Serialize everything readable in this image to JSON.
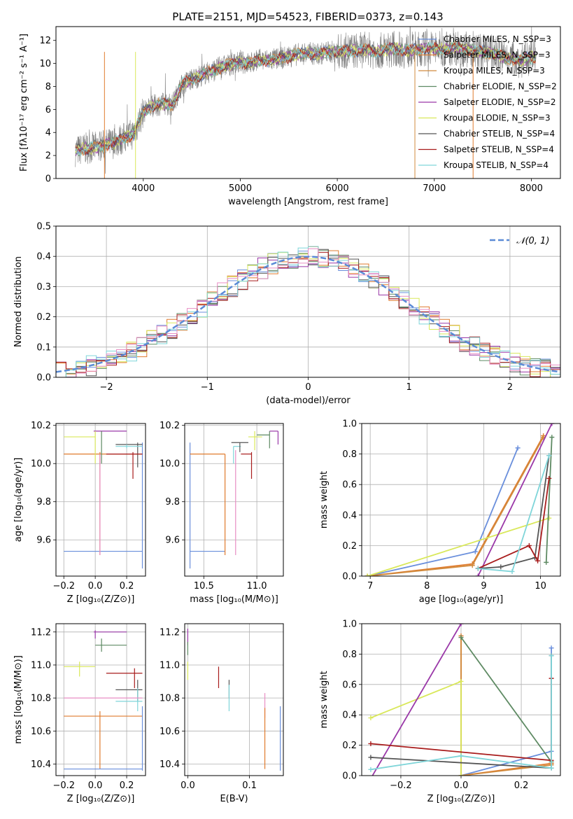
{
  "title": "PLATE=2151, MJD=54523, FIBERID=0373, z=0.143",
  "colors": {
    "chabrier_miles": "#6a8fdc",
    "salpeter_miles": "#e07b2e",
    "kroupa_miles": "#d18b3e",
    "chabrier_elodie": "#5e8a63",
    "salpeter_elodie": "#9a38a8",
    "kroupa_elodie": "#d9e85a",
    "chabrier_stelib": "#555555",
    "salpeter_stelib": "#a81c1c",
    "kroupa_stelib": "#7fd5d9",
    "pink": "#e88ec4"
  },
  "chart_data": [
    {
      "id": "spectrum",
      "type": "line",
      "xlabel": "wavelength [Angstrom, rest frame]",
      "ylabel": "Flux [fλ10⁻¹⁷ erg cm⁻² s⁻¹ A⁻¹]",
      "xlim": [
        3100,
        8300
      ],
      "ylim": [
        0,
        13.2
      ],
      "xticks": [
        "4000",
        "5000",
        "6000",
        "7000",
        "8000"
      ],
      "yticks": [
        "0",
        "2",
        "4",
        "6",
        "8",
        "10",
        "12"
      ],
      "legend_position": "top-right",
      "legend": [
        "Chabrier MILES, N_SSP=3",
        "Salpeter MILES, N_SSP=3",
        "Kroupa MILES, N_SSP=3",
        "Chabrier ELODIE, N_SSP=2",
        "Salpeter ELODIE, N_SSP=2",
        "Kroupa ELODIE, N_SSP=3",
        "Chabrier STELIB, N_SSP=4",
        "Salpeter STELIB, N_SSP=4",
        "Kroupa STELIB, N_SSP=4"
      ],
      "model_x": [
        3300,
        3400,
        3500,
        3600,
        3700,
        3800,
        3900,
        4000,
        4100,
        4200,
        4300,
        4400,
        4500,
        4600,
        4700,
        4800,
        4900,
        5000,
        5100,
        5200,
        5300,
        5400,
        5500,
        5600,
        5700,
        5800,
        5900,
        6000,
        6100,
        6200,
        6300,
        6400,
        6500,
        6600,
        6700,
        6800,
        6900,
        7000,
        7100,
        7200,
        7300,
        7400,
        7500,
        7600,
        7700,
        7800,
        7900,
        8000,
        8050
      ],
      "model_y": [
        2.4,
        2.6,
        2.7,
        2.9,
        3.1,
        3.5,
        3.9,
        5.8,
        6.3,
        6.5,
        6.4,
        8.2,
        8.6,
        9.0,
        9.3,
        9.7,
        9.9,
        10.1,
        10.0,
        10.3,
        10.3,
        10.4,
        10.6,
        10.8,
        10.9,
        10.8,
        11.0,
        11.0,
        11.1,
        11.1,
        11.2,
        11.0,
        11.2,
        11.3,
        11.1,
        11.2,
        11.3,
        11.3,
        11.2,
        11.4,
        11.3,
        11.1,
        11.0,
        10.9,
        10.6,
        10.4,
        10.3,
        10.5,
        10.5
      ]
    },
    {
      "id": "residuals",
      "type": "histogram",
      "xlabel": "(data-model)/error",
      "ylabel": "Normed distribution",
      "xlim": [
        -2.5,
        2.5
      ],
      "ylim": [
        0,
        0.5
      ],
      "xticks": [
        "−2",
        "−1",
        "0",
        "1",
        "2"
      ],
      "yticks": [
        "0.0",
        "0.1",
        "0.2",
        "0.3",
        "0.4",
        "0.5"
      ],
      "legend_position": "top-right",
      "legend": [
        "𝒩(0, 1)"
      ],
      "bin_width": 0.1,
      "bins_start": -2.5
    },
    {
      "id": "age_vs_Z",
      "type": "scatter",
      "xlabel": "Z [log₁₀(Z/Z⊙)]",
      "ylabel": "age  [log₁₀(age/yr)]",
      "xlim": [
        -0.25,
        0.32
      ],
      "ylim": [
        9.41,
        10.21
      ],
      "xticks": [
        "−0.2",
        "0.0",
        "0.2"
      ],
      "yticks": [
        "9.6",
        "9.8",
        "10.0",
        "10.2"
      ],
      "points": [
        {
          "c": "chabrier_miles",
          "x": 0.3,
          "y": 9.54,
          "xl": -0.2,
          "xh": 0.3,
          "yl": 9.45,
          "yh": 10.11
        },
        {
          "c": "salpeter_miles",
          "x": 0.03,
          "y": 10.05,
          "xl": -0.2,
          "xh": 0.3,
          "yl": 9.52,
          "yh": 10.06
        },
        {
          "c": "salpeter_elodie",
          "x": 0.04,
          "y": 10.17,
          "xl": -0.01,
          "xh": 0.2,
          "yl": 10.17,
          "yh": 10.17
        },
        {
          "c": "kroupa_elodie",
          "x": 0.0,
          "y": 10.14,
          "xl": -0.2,
          "xh": 0.0,
          "yl": 10.0,
          "yh": 10.17
        },
        {
          "c": "chabrier_elodie",
          "x": 0.04,
          "y": 10.13,
          "xl": 0.04,
          "xh": 0.04,
          "yl": 10.0,
          "yh": 10.17
        },
        {
          "c": "chabrier_stelib",
          "x": 0.27,
          "y": 10.1,
          "xl": 0.13,
          "xh": 0.3,
          "yl": 9.98,
          "yh": 10.11
        },
        {
          "c": "salpeter_stelib",
          "x": 0.24,
          "y": 10.05,
          "xl": 0.07,
          "xh": 0.3,
          "yl": 9.92,
          "yh": 10.06
        },
        {
          "c": "kroupa_stelib",
          "x": 0.2,
          "y": 10.09,
          "xl": 0.13,
          "xh": 0.3,
          "yl": 10.08,
          "yh": 10.1
        },
        {
          "c": "pink",
          "x": 0.03,
          "y": 10.05,
          "xl": 0.03,
          "xh": 0.03,
          "yl": 9.52,
          "yh": 10.05
        }
      ]
    },
    {
      "id": "age_vs_mass",
      "type": "scatter",
      "xlabel": "mass [log₁₀(M/M⊙)]",
      "ylabel": "",
      "xlim": [
        10.32,
        11.25
      ],
      "ylim": [
        9.41,
        10.21
      ],
      "xticks": [
        "10.5",
        "11.0"
      ],
      "yticks": [
        "9.6",
        "9.8",
        "10.0",
        "10.2"
      ],
      "points": [
        {
          "c": "chabrier_miles",
          "x": 10.37,
          "y": 9.54,
          "xl": 10.37,
          "xh": 10.7,
          "yl": 9.45,
          "yh": 10.11
        },
        {
          "c": "salpeter_miles",
          "x": 10.7,
          "y": 10.05,
          "xl": 10.37,
          "xh": 10.7,
          "yl": 9.52,
          "yh": 10.05
        },
        {
          "c": "pink",
          "x": 10.8,
          "y": 10.05,
          "xl": 10.8,
          "xh": 10.8,
          "yl": 9.52,
          "yh": 10.07
        },
        {
          "c": "kroupa_stelib",
          "x": 10.78,
          "y": 10.09,
          "xl": 10.78,
          "xh": 10.85,
          "yl": 10.0,
          "yh": 10.09
        },
        {
          "c": "chabrier_stelib",
          "x": 10.84,
          "y": 10.11,
          "xl": 10.76,
          "xh": 10.92,
          "yl": 10.06,
          "yh": 10.11
        },
        {
          "c": "salpeter_stelib",
          "x": 10.95,
          "y": 10.05,
          "xl": 10.85,
          "xh": 10.95,
          "yl": 9.92,
          "yh": 10.06
        },
        {
          "c": "kroupa_elodie",
          "x": 10.98,
          "y": 10.14,
          "xl": 10.92,
          "xh": 11.05,
          "yl": 10.07,
          "yh": 10.17
        },
        {
          "c": "chabrier_elodie",
          "x": 11.12,
          "y": 10.15,
          "xl": 11.0,
          "xh": 11.12,
          "yl": 10.08,
          "yh": 10.17
        },
        {
          "c": "salpeter_elodie",
          "x": 11.2,
          "y": 10.17,
          "xl": 11.12,
          "xh": 11.2,
          "yl": 10.1,
          "yh": 10.17
        }
      ]
    },
    {
      "id": "mass_weight_vs_age",
      "type": "line",
      "xlabel": "age  [log₁₀(age/yr)]",
      "ylabel": "mass weight",
      "xlim": [
        6.85,
        10.35
      ],
      "ylim": [
        0,
        1
      ],
      "xticks": [
        "7",
        "8",
        "9",
        "10"
      ],
      "yticks": [
        "0.0",
        "0.2",
        "0.4",
        "0.6",
        "0.8",
        "1.0"
      ],
      "series": [
        {
          "c": "chabrier_miles",
          "x": [
            6.95,
            8.85,
            9.6
          ],
          "y": [
            0.0,
            0.16,
            0.84
          ]
        },
        {
          "c": "salpeter_miles",
          "x": [
            6.95,
            8.8,
            10.05
          ],
          "y": [
            0.0,
            0.08,
            0.92
          ]
        },
        {
          "c": "kroupa_miles",
          "x": [
            6.95,
            8.8,
            10.05
          ],
          "y": [
            0.0,
            0.07,
            0.91
          ]
        },
        {
          "c": "kroupa_elodie",
          "x": [
            6.95,
            10.15
          ],
          "y": [
            0.0,
            0.38
          ]
        },
        {
          "c": "salpeter_elodie",
          "x": [
            8.9,
            10.2
          ],
          "y": [
            0.0,
            1.0
          ]
        },
        {
          "c": "chabrier_elodie",
          "x": [
            10.1,
            10.2
          ],
          "y": [
            0.09,
            0.91
          ]
        },
        {
          "c": "chabrier_stelib",
          "x": [
            8.9,
            9.3,
            9.9,
            10.15
          ],
          "y": [
            0.05,
            0.06,
            0.12,
            0.79
          ]
        },
        {
          "c": "salpeter_stelib",
          "x": [
            8.9,
            9.8,
            9.95,
            10.15
          ],
          "y": [
            0.05,
            0.2,
            0.1,
            0.64
          ]
        },
        {
          "c": "kroupa_stelib",
          "x": [
            8.9,
            9.5,
            10.15
          ],
          "y": [
            0.05,
            0.03,
            0.79
          ]
        }
      ]
    },
    {
      "id": "mass_vs_Z",
      "type": "scatter",
      "xlabel": "Z [log₁₀(Z/Z⊙)]",
      "ylabel": "mass [log₁₀(M/M⊙)]",
      "xlim": [
        -0.25,
        0.32
      ],
      "ylim": [
        10.33,
        11.25
      ],
      "xticks": [
        "−0.2",
        "0.0",
        "0.2"
      ],
      "yticks": [
        "10.4",
        "10.6",
        "10.8",
        "11.0",
        "11.2"
      ],
      "points": [
        {
          "c": "salpeter_elodie",
          "x": 0.0,
          "y": 11.2,
          "xl": -0.01,
          "xh": 0.2,
          "yl": 11.16,
          "yh": 11.21
        },
        {
          "c": "chabrier_elodie",
          "x": 0.04,
          "y": 11.12,
          "xl": 0.0,
          "xh": 0.2,
          "yl": 11.08,
          "yh": 11.16
        },
        {
          "c": "kroupa_elodie",
          "x": -0.1,
          "y": 10.99,
          "xl": -0.2,
          "xh": 0.0,
          "yl": 10.93,
          "yh": 11.02
        },
        {
          "c": "salpeter_stelib",
          "x": 0.25,
          "y": 10.95,
          "xl": 0.07,
          "xh": 0.3,
          "yl": 10.86,
          "yh": 10.98
        },
        {
          "c": "chabrier_stelib",
          "x": 0.27,
          "y": 10.85,
          "xl": 0.13,
          "xh": 0.3,
          "yl": 10.78,
          "yh": 10.91
        },
        {
          "c": "kroupa_stelib",
          "x": 0.27,
          "y": 10.78,
          "xl": 0.13,
          "xh": 0.3,
          "yl": 10.72,
          "yh": 10.86
        },
        {
          "c": "pink",
          "x": 0.03,
          "y": 10.8,
          "xl": -0.2,
          "xh": 0.3,
          "yl": 10.8,
          "yh": 10.8
        },
        {
          "c": "salpeter_miles",
          "x": 0.03,
          "y": 10.69,
          "xl": -0.2,
          "xh": 0.3,
          "yl": 10.37,
          "yh": 10.72
        },
        {
          "c": "chabrier_miles",
          "x": 0.3,
          "y": 10.37,
          "xl": -0.2,
          "xh": 0.3,
          "yl": 10.36,
          "yh": 10.75
        }
      ]
    },
    {
      "id": "mass_vs_ebv",
      "type": "scatter",
      "xlabel": "E(B-V)",
      "ylabel": "",
      "xlim": [
        -0.005,
        0.155
      ],
      "ylim": [
        10.33,
        11.25
      ],
      "xticks": [
        "0.0",
        "0.1"
      ],
      "yticks": [
        "10.4",
        "10.6",
        "10.8",
        "11.0",
        "11.2"
      ],
      "points": [
        {
          "c": "salpeter_elodie",
          "x": 0.0,
          "y": 11.18,
          "xl": 0.0,
          "xh": 0.0,
          "yl": 11.12,
          "yh": 11.22
        },
        {
          "c": "chabrier_elodie",
          "x": 0.0,
          "y": 11.1,
          "xl": 0.0,
          "xh": 0.0,
          "yl": 11.06,
          "yh": 11.14
        },
        {
          "c": "kroupa_elodie",
          "x": 0.0,
          "y": 10.97,
          "xl": 0.0,
          "xh": 0.0,
          "yl": 10.91,
          "yh": 11.02
        },
        {
          "c": "salpeter_stelib",
          "x": 0.05,
          "y": 10.92,
          "xl": 0.05,
          "xh": 0.05,
          "yl": 10.86,
          "yh": 10.99
        },
        {
          "c": "chabrier_stelib",
          "x": 0.067,
          "y": 10.86,
          "xl": 0.067,
          "xh": 0.067,
          "yl": 10.8,
          "yh": 10.91
        },
        {
          "c": "kroupa_stelib",
          "x": 0.067,
          "y": 10.8,
          "xl": 0.067,
          "xh": 0.067,
          "yl": 10.72,
          "yh": 10.88
        },
        {
          "c": "pink",
          "x": 0.125,
          "y": 10.75,
          "xl": 0.125,
          "xh": 0.125,
          "yl": 10.68,
          "yh": 10.83
        },
        {
          "c": "salpeter_miles",
          "x": 0.125,
          "y": 10.55,
          "xl": 0.125,
          "xh": 0.125,
          "yl": 10.37,
          "yh": 10.74
        },
        {
          "c": "chabrier_miles",
          "x": 0.15,
          "y": 10.55,
          "xl": 0.15,
          "xh": 0.15,
          "yl": 10.36,
          "yh": 10.75
        }
      ]
    },
    {
      "id": "mass_weight_vs_Z",
      "type": "line",
      "xlabel": "Z [log₁₀(Z/Z⊙)]",
      "ylabel": "mass weight",
      "xlim": [
        -0.33,
        0.33
      ],
      "ylim": [
        0,
        1
      ],
      "xticks": [
        "−0.2",
        "0.0",
        "0.2"
      ],
      "yticks": [
        "0.0",
        "0.2",
        "0.4",
        "0.6",
        "0.8",
        "1.0"
      ],
      "series": [
        {
          "c": "chabrier_miles",
          "x": [
            0.0,
            0.3,
            0.3
          ],
          "y": [
            0.0,
            0.16,
            0.84
          ]
        },
        {
          "c": "salpeter_miles",
          "x": [
            0.0,
            0.0,
            0.3,
            0.3
          ],
          "y": [
            0.92,
            0.0,
            0.08,
            0.08
          ]
        },
        {
          "c": "kroupa_miles",
          "x": [
            0.0,
            0.0,
            0.3
          ],
          "y": [
            0.91,
            0.0,
            0.07
          ]
        },
        {
          "c": "kroupa_elodie",
          "x": [
            -0.3,
            0.0,
            0.0
          ],
          "y": [
            0.38,
            0.62,
            0.0
          ]
        },
        {
          "c": "salpeter_elodie",
          "x": [
            -0.3,
            0.0
          ],
          "y": [
            -0.02,
            1.0
          ]
        },
        {
          "c": "chabrier_elodie",
          "x": [
            0.0,
            0.3
          ],
          "y": [
            0.91,
            0.09
          ]
        },
        {
          "c": "chabrier_stelib",
          "x": [
            -0.3,
            0.3,
            0.3
          ],
          "y": [
            0.12,
            0.05,
            0.79
          ]
        },
        {
          "c": "salpeter_stelib",
          "x": [
            -0.3,
            0.3,
            0.3
          ],
          "y": [
            0.21,
            0.1,
            0.64
          ]
        },
        {
          "c": "kroupa_stelib",
          "x": [
            -0.3,
            0.0,
            0.3,
            0.3
          ],
          "y": [
            0.04,
            0.13,
            0.05,
            0.79
          ]
        }
      ]
    }
  ]
}
